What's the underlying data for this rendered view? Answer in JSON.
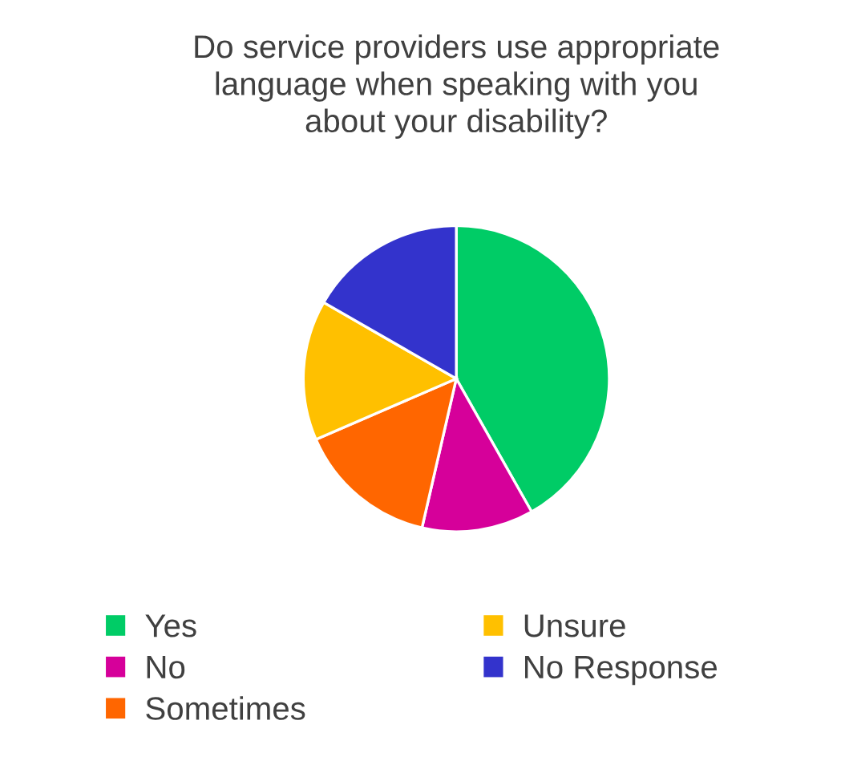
{
  "chart_data": {
    "type": "pie",
    "title": "Do service providers use appropriate\nlanguage when speaking with you\nabout your disability?",
    "categories": [
      "Yes",
      "No",
      "Sometimes",
      "Unsure",
      "No Response"
    ],
    "values": [
      41.8,
      11.8,
      14.9,
      14.8,
      16.7
    ],
    "colors": [
      "#00cc66",
      "#d6009a",
      "#ff6600",
      "#ffc000",
      "#3333cc"
    ],
    "legend": "bottom"
  }
}
